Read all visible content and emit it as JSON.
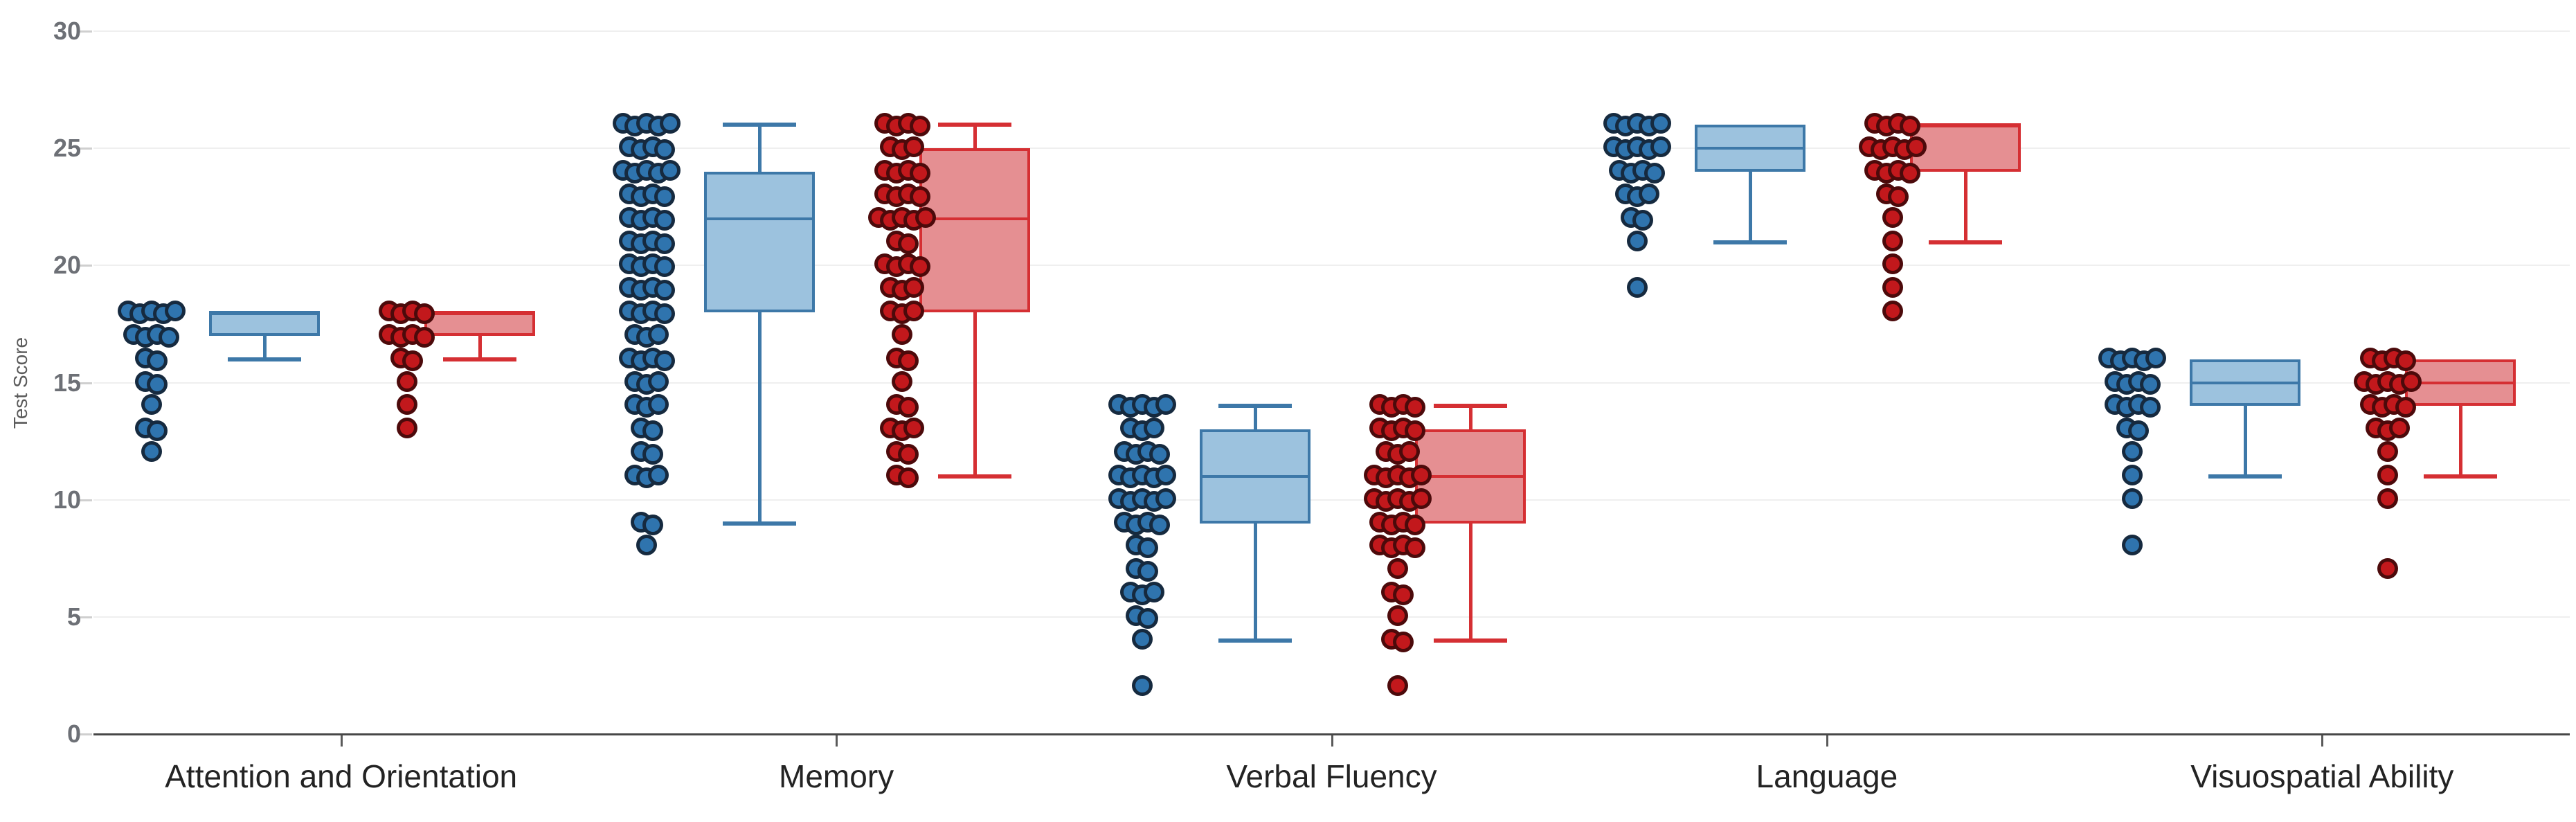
{
  "chart": {
    "title": "",
    "y_axis_title": "Test Score"
  },
  "colors": {
    "background": "#ffffff",
    "gridline": "#efefef",
    "axis_line": "#474747",
    "ytick_text": "#6d7076",
    "category_text": "#232323",
    "y_axis_title_text": "#5a5a5a",
    "blue_box_fill": "#9cc2de",
    "blue_box_border": "#3d78a8",
    "blue_dot_fill": "#2f74ae",
    "blue_dot_ring": "rgba(16,22,32,0.78)",
    "red_box_fill": "#e58f92",
    "red_box_border": "#d52f33",
    "red_dot_fill": "#c2181c",
    "red_dot_ring": "rgba(42,6,6,0.78)"
  },
  "chart_data": {
    "type": "boxplot",
    "title": "",
    "xlabel": "",
    "ylabel": "Test Score",
    "ylim": [
      0,
      30
    ],
    "yticks": [
      0,
      5,
      10,
      15,
      20,
      25,
      30
    ],
    "grid": "horizontal gridlines at each y tick, light gray",
    "legend": "none",
    "categories": [
      "Attention and Orientation",
      "Memory",
      "Verbal Fluency",
      "Language",
      "Visuospatial Ability"
    ],
    "series": [
      {
        "name": "Blue group",
        "box_fill": "#9cc2de",
        "box_border": "#3d78a8",
        "dot_fill": "#2f74ae",
        "dot_ring": "rgba(16,22,32,0.78)",
        "stats": [
          {
            "low": 16,
            "q1": 17,
            "median": 18,
            "q3": 18,
            "high": 18
          },
          {
            "low": 9,
            "q1": 18,
            "median": 22,
            "q3": 24,
            "high": 26
          },
          {
            "low": 4,
            "q1": 9,
            "median": 11,
            "q3": 13,
            "high": 14
          },
          {
            "low": 21,
            "q1": 24,
            "median": 25,
            "q3": 26,
            "high": 26
          },
          {
            "low": 11,
            "q1": 14,
            "median": 15,
            "q3": 16,
            "high": 16
          }
        ],
        "points": [
          [
            [
              18,
              5
            ],
            [
              17,
              4
            ],
            [
              16,
              2
            ],
            [
              15,
              2
            ],
            [
              14,
              1
            ],
            [
              13,
              2
            ],
            [
              12,
              1
            ]
          ],
          [
            [
              26,
              5
            ],
            [
              25,
              4
            ],
            [
              24,
              5
            ],
            [
              23,
              4
            ],
            [
              22,
              4
            ],
            [
              21,
              4
            ],
            [
              20,
              4
            ],
            [
              19,
              4
            ],
            [
              18,
              4
            ],
            [
              17,
              3
            ],
            [
              16,
              4
            ],
            [
              15,
              3
            ],
            [
              14,
              3
            ],
            [
              13,
              2
            ],
            [
              12,
              2
            ],
            [
              11,
              3
            ],
            [
              9,
              2
            ],
            [
              8,
              1
            ]
          ],
          [
            [
              14,
              5
            ],
            [
              13,
              3
            ],
            [
              12,
              4
            ],
            [
              11,
              5
            ],
            [
              10,
              5
            ],
            [
              9,
              4
            ],
            [
              8,
              2
            ],
            [
              7,
              2
            ],
            [
              6,
              3
            ],
            [
              5,
              2
            ],
            [
              4,
              1
            ],
            [
              2,
              1
            ]
          ],
          [
            [
              26,
              5
            ],
            [
              25,
              5
            ],
            [
              24,
              4
            ],
            [
              23,
              3
            ],
            [
              22,
              2
            ],
            [
              21,
              1
            ],
            [
              19,
              1
            ]
          ],
          [
            [
              16,
              5
            ],
            [
              15,
              4
            ],
            [
              14,
              4
            ],
            [
              13,
              2
            ],
            [
              12,
              1
            ],
            [
              11,
              1
            ],
            [
              10,
              1
            ],
            [
              8,
              1
            ]
          ]
        ]
      },
      {
        "name": "Red group",
        "box_fill": "#e58f92",
        "box_border": "#d52f33",
        "dot_fill": "#c2181c",
        "dot_ring": "rgba(42,6,6,0.78)",
        "stats": [
          {
            "low": 16,
            "q1": 17,
            "median": 18,
            "q3": 18,
            "high": 18
          },
          {
            "low": 11,
            "q1": 18,
            "median": 22,
            "q3": 25,
            "high": 26
          },
          {
            "low": 4,
            "q1": 9,
            "median": 11,
            "q3": 13,
            "high": 14
          },
          {
            "low": 21,
            "q1": 24,
            "median": 26,
            "q3": 26,
            "high": 26
          },
          {
            "low": 11,
            "q1": 14,
            "median": 15,
            "q3": 16,
            "high": 16
          }
        ],
        "points": [
          [
            [
              18,
              4
            ],
            [
              17,
              4
            ],
            [
              16,
              2
            ],
            [
              15,
              1
            ],
            [
              14,
              1
            ],
            [
              13,
              1
            ]
          ],
          [
            [
              26,
              4
            ],
            [
              25,
              3
            ],
            [
              24,
              4
            ],
            [
              23,
              4
            ],
            [
              22,
              5
            ],
            [
              21,
              2
            ],
            [
              20,
              4
            ],
            [
              19,
              3
            ],
            [
              18,
              3
            ],
            [
              17,
              1
            ],
            [
              16,
              2
            ],
            [
              15,
              1
            ],
            [
              14,
              2
            ],
            [
              13,
              3
            ],
            [
              12,
              2
            ],
            [
              11,
              2
            ]
          ],
          [
            [
              14,
              4
            ],
            [
              13,
              4
            ],
            [
              12,
              3
            ],
            [
              11,
              5
            ],
            [
              10,
              5
            ],
            [
              9,
              4
            ],
            [
              8,
              4
            ],
            [
              7,
              1
            ],
            [
              6,
              2
            ],
            [
              5,
              1
            ],
            [
              4,
              2
            ],
            [
              2,
              1
            ]
          ],
          [
            [
              26,
              4
            ],
            [
              25,
              5
            ],
            [
              24,
              4
            ],
            [
              23,
              2
            ],
            [
              22,
              1
            ],
            [
              21,
              1
            ],
            [
              20,
              1
            ],
            [
              19,
              1
            ],
            [
              18,
              1
            ]
          ],
          [
            [
              16,
              4
            ],
            [
              15,
              5
            ],
            [
              14,
              4
            ],
            [
              13,
              3
            ],
            [
              12,
              1
            ],
            [
              11,
              1
            ],
            [
              10,
              1
            ],
            [
              7,
              1
            ]
          ]
        ]
      }
    ]
  }
}
